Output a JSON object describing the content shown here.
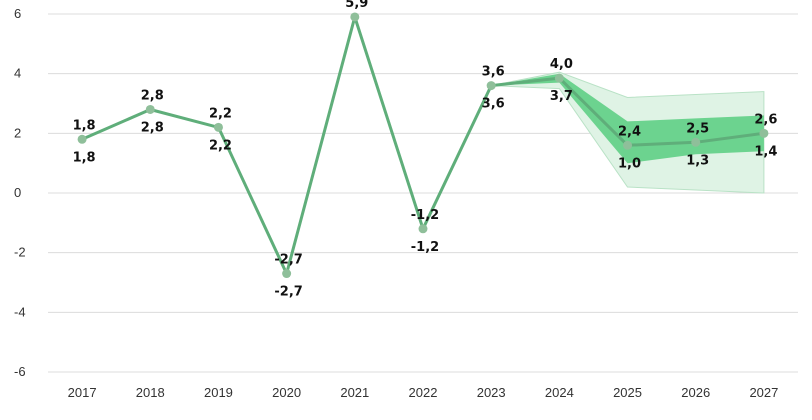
{
  "chart_data": {
    "type": "line",
    "title": "",
    "xlabel": "",
    "ylabel": "",
    "x": [
      "2017",
      "2018",
      "2019",
      "2020",
      "2021",
      "2022",
      "2023",
      "2024",
      "2025",
      "2026",
      "2027"
    ],
    "ylim": [
      -6,
      6
    ],
    "y_ticks": [
      "6",
      "4",
      "2",
      "0",
      "-2",
      "-4",
      "-6"
    ],
    "y_tick_values": [
      6,
      4,
      2,
      0,
      -2,
      -4,
      -6
    ],
    "grid": true,
    "series": [
      {
        "values": [
          1.8,
          2.8,
          2.2,
          -2.7,
          5.9,
          -1.2,
          3.6,
          3.85,
          1.6,
          1.7,
          2.0
        ]
      }
    ],
    "band_inner": {
      "x": [
        "2023",
        "2024",
        "2025",
        "2026",
        "2027"
      ],
      "upper": [
        3.6,
        4.0,
        2.4,
        2.5,
        2.6
      ],
      "lower": [
        3.6,
        3.7,
        1.0,
        1.3,
        1.4
      ]
    },
    "band_outer": {
      "x": [
        "2023",
        "2024",
        "2025",
        "2026",
        "2027"
      ],
      "upper": [
        3.6,
        4.05,
        3.2,
        3.3,
        3.4
      ],
      "lower": [
        3.6,
        3.5,
        0.2,
        0.1,
        0.0
      ]
    },
    "labels_above": [
      "1,8",
      "2,8",
      "2,2",
      "-2,7",
      "5,9",
      "-1,2",
      "3,6",
      "4,0",
      "2,4",
      "2,5",
      "2,6"
    ],
    "labels_below": [
      "1,8",
      "2,8",
      "2,2",
      "-2,7",
      "",
      "-1,2",
      "3,6",
      "3,7",
      "1,0",
      "1,3",
      "1,4"
    ],
    "colors": {
      "line": "#5fae7a",
      "marker": "#8fbf9a",
      "band_inner": "#5fcf85",
      "band_outer": "#dff3e5",
      "band_outer_edge": "#b9e2c6",
      "grid": "#dcdcdc"
    }
  }
}
